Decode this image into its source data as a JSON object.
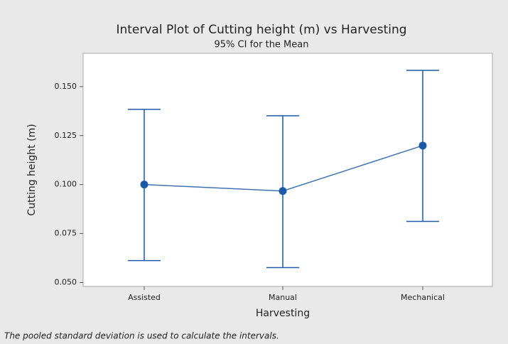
{
  "chart_data": {
    "type": "interval",
    "title": "Interval Plot of Cutting height (m) vs Harvesting",
    "subtitle": "95% CI for the Mean",
    "x_label": "Harvesting",
    "y_label": "Cutting height (m)",
    "footnote": "The pooled standard deviation is used to calculate the intervals.",
    "categories": [
      "Assisted",
      "Manual",
      "Mechanical"
    ],
    "values": [
      0.1,
      0.0967,
      0.1199
    ],
    "ci_lower": [
      0.0612,
      0.0576,
      0.0812
    ],
    "ci_upper": [
      0.1384,
      0.1351,
      0.1583
    ],
    "color": "#1a5aa6",
    "ylim": [
      0.048,
      0.167
    ],
    "yticks": [
      {
        "value": 0.05,
        "label": "0.050"
      },
      0.075,
      {
        "value": 0.1,
        "label": "0.100"
      },
      0.125,
      {
        "value": 0.15,
        "label": "0.150"
      }
    ],
    "grid": false
  }
}
